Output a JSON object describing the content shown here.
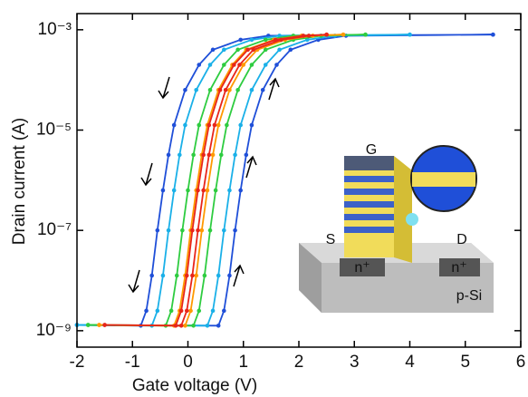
{
  "chart_data": {
    "type": "line",
    "x_label": "Gate voltage (V)",
    "y_label": "Drain current  (A)",
    "yscale": "log",
    "xlim": [
      -2,
      6
    ],
    "ylim": [
      4.7e-10,
      0.0021
    ],
    "xticks": [
      -2,
      -1,
      0,
      1,
      2,
      3,
      4,
      5,
      6
    ],
    "yticks": [
      {
        "value": 1e-09,
        "label": "10⁻⁹"
      },
      {
        "value": 1e-07,
        "label": "10⁻⁷"
      },
      {
        "value": 1e-05,
        "label": "10⁻⁵"
      },
      {
        "value": 0.001,
        "label": "10⁻³"
      }
    ],
    "inset_labels": [
      "G",
      "S",
      "D",
      "n⁺",
      "n⁺",
      "p-Si"
    ],
    "series": [
      {
        "color": "#1f4fd8",
        "x": [
          -2,
          0.55,
          0.65,
          0.75,
          0.85,
          0.95,
          1.05,
          1.15,
          1.35,
          1.6,
          1.85,
          2.35,
          2.85,
          5.5,
          5.5,
          1.45,
          0.95,
          0.45,
          0.2,
          -0.05,
          -0.25,
          -0.35,
          -0.45,
          -0.55,
          -0.65,
          -0.75,
          -0.85,
          -2
        ],
        "values": [
          1.3e-09,
          1.26e-09,
          2.5e-09,
          1.26e-08,
          1e-07,
          6.3e-07,
          3.2e-06,
          1.26e-05,
          6.3e-05,
          0.0002,
          0.0004,
          0.00063,
          0.00076,
          0.0008,
          0.0008,
          0.00076,
          0.00063,
          0.0004,
          0.0002,
          6.3e-05,
          1.26e-05,
          3.2e-06,
          6.3e-07,
          1e-07,
          1.26e-08,
          2.5e-09,
          1.26e-09,
          1.3e-09
        ]
      },
      {
        "color": "#1ab0e8",
        "x": [
          -2,
          0.35,
          0.45,
          0.55,
          0.65,
          0.75,
          0.85,
          0.95,
          1.15,
          1.4,
          1.65,
          2.15,
          2.65,
          4,
          4,
          1.65,
          1.15,
          0.65,
          0.4,
          0.15,
          -0.05,
          -0.15,
          -0.25,
          -0.35,
          -0.45,
          -0.55,
          -0.65,
          -2
        ],
        "values": [
          1.3e-09,
          1.26e-09,
          2.5e-09,
          1.26e-08,
          1e-07,
          6.3e-07,
          3.2e-06,
          1.26e-05,
          6.3e-05,
          0.0002,
          0.0004,
          0.00063,
          0.00076,
          0.0008,
          0.0008,
          0.00076,
          0.00063,
          0.0004,
          0.0002,
          6.3e-05,
          1.26e-05,
          3.2e-06,
          6.3e-07,
          1e-07,
          1.26e-08,
          2.5e-09,
          1.26e-09,
          1.3e-09
        ]
      },
      {
        "color": "#2ecc40",
        "x": [
          -1.8,
          0.1,
          0.2,
          0.3,
          0.4,
          0.5,
          0.6,
          0.7,
          0.9,
          1.15,
          1.4,
          1.9,
          2.4,
          3.2,
          3.2,
          1.9,
          1.4,
          0.9,
          0.65,
          0.4,
          0.2,
          0.1,
          0,
          -0.1,
          -0.2,
          -0.3,
          -0.4,
          -1.8
        ],
        "values": [
          1.3e-09,
          1.26e-09,
          2.5e-09,
          1.26e-08,
          1e-07,
          6.3e-07,
          3.2e-06,
          1.26e-05,
          6.3e-05,
          0.0002,
          0.0004,
          0.00063,
          0.00076,
          0.0008,
          0.0008,
          0.00076,
          0.00063,
          0.0004,
          0.0002,
          6.3e-05,
          1.26e-05,
          3.2e-06,
          6.3e-07,
          1e-07,
          1.26e-08,
          2.5e-09,
          1.26e-09,
          1.3e-09
        ]
      },
      {
        "color": "#ff9900",
        "x": [
          -1.6,
          -0.05,
          0.05,
          0.15,
          0.25,
          0.35,
          0.45,
          0.55,
          0.75,
          1,
          1.25,
          1.75,
          2.25,
          2.8,
          2.8,
          2.05,
          1.55,
          1.05,
          0.8,
          0.55,
          0.35,
          0.25,
          0.15,
          0.05,
          -0.05,
          -0.15,
          -0.25,
          -1.6
        ],
        "values": [
          1.3e-09,
          1.26e-09,
          2.5e-09,
          1.26e-08,
          1e-07,
          6.3e-07,
          3.2e-06,
          1.26e-05,
          6.3e-05,
          0.0002,
          0.0004,
          0.00063,
          0.00076,
          0.0008,
          0.0008,
          0.00076,
          0.00063,
          0.0004,
          0.0002,
          6.3e-05,
          1.26e-05,
          3.2e-06,
          6.3e-07,
          1e-07,
          1.26e-08,
          2.5e-09,
          1.26e-09,
          1.3e-09
        ]
      },
      {
        "color": "#e8251a",
        "x": [
          -1.5,
          -0.12,
          -0.02,
          0.08,
          0.18,
          0.28,
          0.38,
          0.48,
          0.68,
          0.93,
          1.18,
          1.68,
          2.18,
          2.5,
          2.5,
          2.08,
          1.58,
          1.08,
          0.83,
          0.58,
          0.38,
          0.28,
          0.18,
          0.08,
          -0.02,
          -0.12,
          -0.22,
          -1.5
        ],
        "values": [
          1.3e-09,
          1.26e-09,
          2.5e-09,
          1.26e-08,
          1e-07,
          6.3e-07,
          3.2e-06,
          1.26e-05,
          6.3e-05,
          0.0002,
          0.0004,
          0.00063,
          0.00076,
          0.0008,
          0.0008,
          0.00076,
          0.00063,
          0.0004,
          0.0002,
          6.3e-05,
          1.26e-05,
          3.2e-06,
          6.3e-07,
          1e-07,
          1.26e-08,
          2.5e-09,
          1.26e-09,
          1.3e-09
        ]
      }
    ]
  }
}
